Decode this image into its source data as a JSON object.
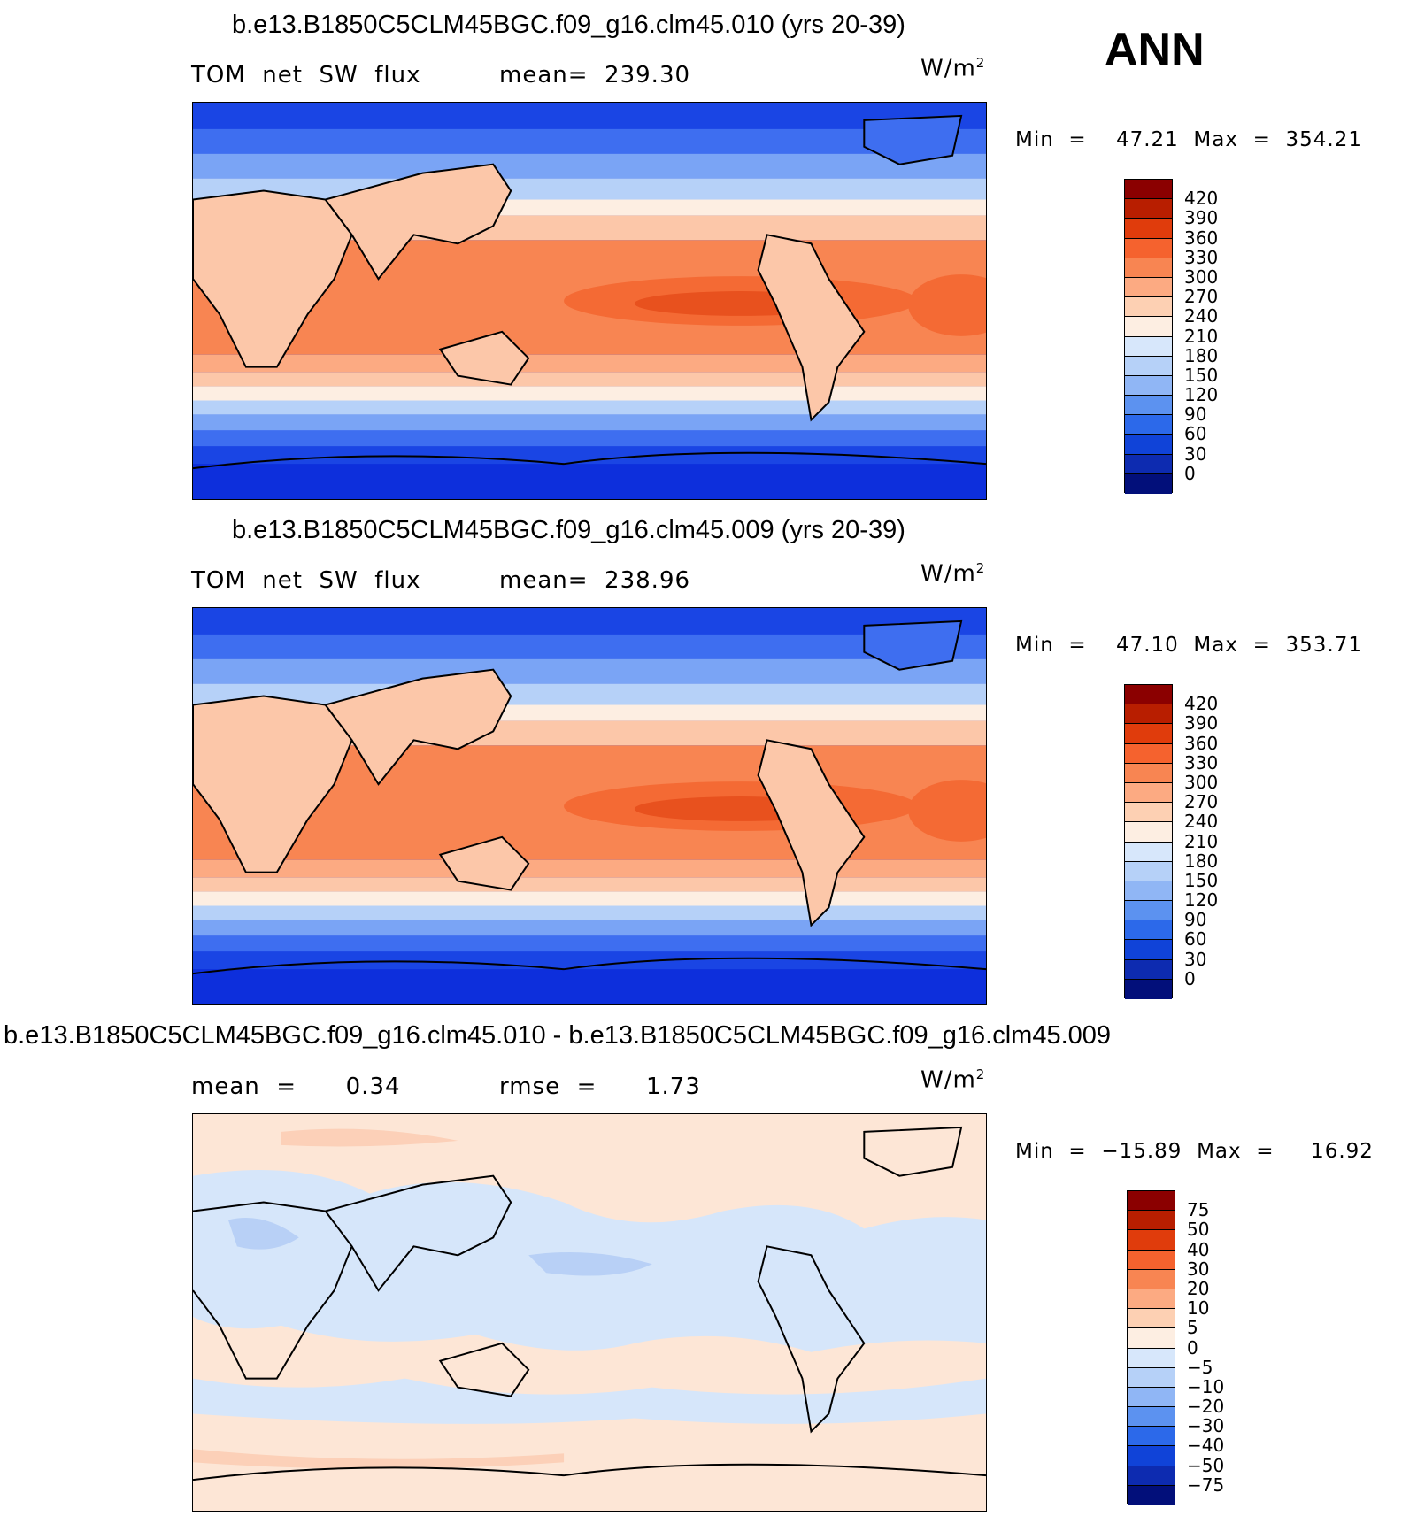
{
  "season": "ANN",
  "panels": [
    {
      "title": "b.e13.B1850C5CLM45BGC.f09_g16.clm45.010 (yrs 20-39)",
      "left_label": "TOM  net  SW  flux",
      "stat_label": "mean=  239.30",
      "units": "W/m",
      "units_sup": "2",
      "minmax": "Min  =    47.21  Max  =  354.21",
      "colorbar_ticks": [
        "420",
        "390",
        "360",
        "330",
        "300",
        "270",
        "240",
        "210",
        "180",
        "150",
        "120",
        "90",
        "60",
        "30",
        "0"
      ],
      "colorbar_colors": [
        "#8b0000",
        "#b81e00",
        "#e03c0c",
        "#f5622e",
        "#f88552",
        "#fcaa82",
        "#fdd0b3",
        "#fdeee2",
        "#d7e7fb",
        "#b6d1f8",
        "#90b6f5",
        "#5c92f0",
        "#2c69ea",
        "#1043d8",
        "#0d2bb0",
        "#020f7a"
      ]
    },
    {
      "title": "b.e13.B1850C5CLM45BGC.f09_g16.clm45.009 (yrs 20-39)",
      "left_label": "TOM  net  SW  flux",
      "stat_label": "mean=  238.96",
      "units": "W/m",
      "units_sup": "2",
      "minmax": "Min  =    47.10  Max  =  353.71",
      "colorbar_ticks": [
        "420",
        "390",
        "360",
        "330",
        "300",
        "270",
        "240",
        "210",
        "180",
        "150",
        "120",
        "90",
        "60",
        "30",
        "0"
      ],
      "colorbar_colors": [
        "#8b0000",
        "#b81e00",
        "#e03c0c",
        "#f5622e",
        "#f88552",
        "#fcaa82",
        "#fdd0b3",
        "#fdeee2",
        "#d7e7fb",
        "#b6d1f8",
        "#90b6f5",
        "#5c92f0",
        "#2c69ea",
        "#1043d8",
        "#0d2bb0",
        "#020f7a"
      ]
    },
    {
      "title": "b.e13.B1850C5CLM45BGC.f09_g16.clm45.010 - b.e13.B1850C5CLM45BGC.f09_g16.clm45.009",
      "left_label": "mean  =      0.34",
      "stat_label": "rmse  =      1.73",
      "units": "W/m",
      "units_sup": "2",
      "minmax": "Min  =  −15.89  Max  =     16.92",
      "colorbar_ticks": [
        "75",
        "50",
        "40",
        "30",
        "20",
        "10",
        "5",
        "0",
        "−5",
        "−10",
        "−20",
        "−30",
        "−40",
        "−50",
        "−75"
      ],
      "colorbar_colors": [
        "#8b0000",
        "#b81e00",
        "#e03c0c",
        "#f5622e",
        "#f88552",
        "#fcaa82",
        "#fdd0b3",
        "#fdeee2",
        "#d7e7fb",
        "#b6d1f8",
        "#90b6f5",
        "#5c92f0",
        "#2c69ea",
        "#1043d8",
        "#0d2bb0",
        "#020f7a"
      ]
    }
  ],
  "colors": {
    "flux_bands": [
      "#0d2fdc",
      "#1a45e4",
      "#3e6ef0",
      "#7aa4f5",
      "#b6d1f8",
      "#fdeee2",
      "#fcc7a9",
      "#fcaa82",
      "#f88552",
      "#f46a34",
      "#e8511e"
    ],
    "diff_pos": "#fde6d6",
    "diff_neg": "#d6e6fa",
    "diff_deeper_pos": "#fcd0b8",
    "diff_deeper_neg": "#b8d0f6"
  }
}
